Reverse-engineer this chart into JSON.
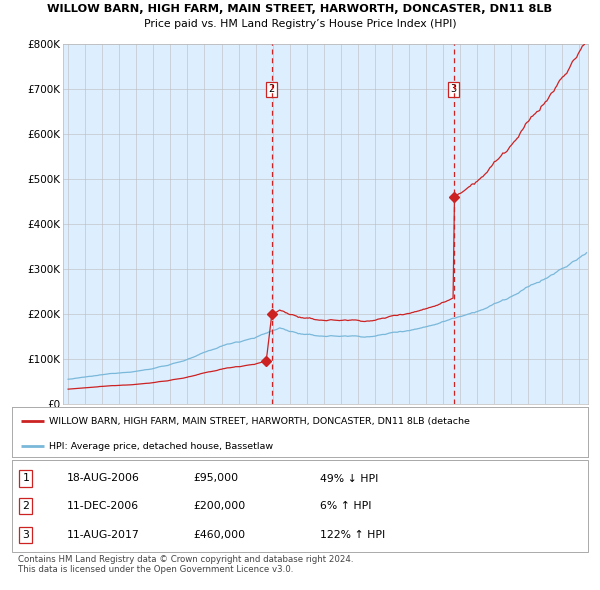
{
  "title1": "WILLOW BARN, HIGH FARM, MAIN STREET, HARWORTH, DONCASTER, DN11 8LB",
  "title2": "Price paid vs. HM Land Registry’s House Price Index (HPI)",
  "plot_bg_color": "#ddeeff",
  "hpi_line_color": "#7ab8d9",
  "price_line_color": "#cc2222",
  "ylim": [
    0,
    800000
  ],
  "yticks": [
    0,
    100000,
    200000,
    300000,
    400000,
    500000,
    600000,
    700000,
    800000
  ],
  "ytick_labels": [
    "£0",
    "£100K",
    "£200K",
    "£300K",
    "£400K",
    "£500K",
    "£600K",
    "£700K",
    "£800K"
  ],
  "xlim_start": 1994.7,
  "xlim_end": 2025.5,
  "sales": [
    {
      "label": "1",
      "date_num": 2006.62,
      "price": 95000,
      "show_vline": false
    },
    {
      "label": "2",
      "date_num": 2006.95,
      "price": 200000,
      "show_vline": true
    },
    {
      "label": "3",
      "date_num": 2017.61,
      "price": 460000,
      "show_vline": true
    }
  ],
  "legend_entries": [
    "WILLOW BARN, HIGH FARM, MAIN STREET, HARWORTH, DONCASTER, DN11 8LB (detache",
    "HPI: Average price, detached house, Bassetlaw"
  ],
  "table_data": [
    [
      "1",
      "18-AUG-2006",
      "£95,000",
      "49% ↓ HPI"
    ],
    [
      "2",
      "11-DEC-2006",
      "£200,000",
      "6% ↑ HPI"
    ],
    [
      "3",
      "11-AUG-2017",
      "£460,000",
      "122% ↑ HPI"
    ]
  ],
  "footnote": "Contains HM Land Registry data © Crown copyright and database right 2024.\nThis data is licensed under the Open Government Licence v3.0."
}
